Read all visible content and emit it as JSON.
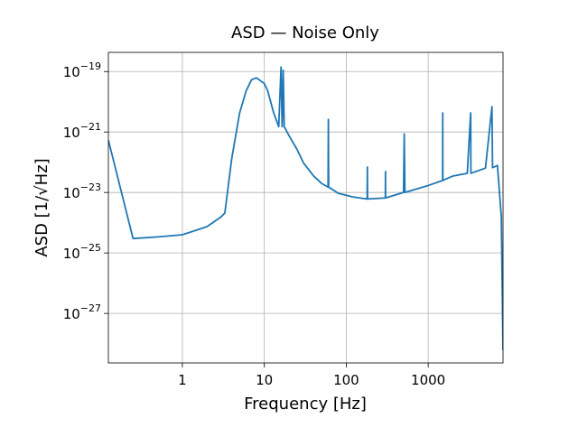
{
  "chart_data": {
    "type": "line",
    "title": "ASD — Noise Only",
    "xlabel": "Frequency [Hz]",
    "ylabel": "ASD [1/√Hz]",
    "xscale": "log",
    "yscale": "log",
    "grid": true,
    "color": "#1f77b4",
    "xlim": [
      0.125,
      8192
    ],
    "ylim": [
      2.3e-29,
      4.3e-19
    ],
    "xticks": [
      1,
      10,
      100,
      1000
    ],
    "yticks": [
      {
        "value": 1e-19,
        "label": "10",
        "exponent": "−19"
      },
      {
        "value": 1e-21,
        "label": "10",
        "exponent": "−21"
      },
      {
        "value": 1e-23,
        "label": "10",
        "exponent": "−23"
      },
      {
        "value": 1e-25,
        "label": "10",
        "exponent": "−25"
      },
      {
        "value": 1e-27,
        "label": "10",
        "exponent": "−27"
      }
    ],
    "x": [
      0.125,
      0.25,
      0.5,
      1,
      2,
      3,
      3.3,
      4,
      5,
      6,
      7,
      8,
      10,
      11,
      13,
      15,
      16,
      16.5,
      17,
      17.5,
      20,
      25,
      30,
      40,
      50,
      60,
      60.5,
      61,
      80,
      120,
      180,
      181,
      182,
      300,
      301,
      302,
      500,
      510,
      520,
      1000,
      1500,
      1505,
      1510,
      2000,
      3000,
      3300,
      3320,
      5000,
      6000,
      6100,
      7000,
      7800,
      8192
    ],
    "values": [
      5.4e-22,
      3e-25,
      3.4e-25,
      4e-25,
      7.4e-25,
      1.6e-24,
      2.1e-24,
      1.3e-22,
      4.3e-21,
      2.3e-20,
      5.4e-20,
      6.2e-20,
      4e-20,
      2.3e-20,
      4.3e-21,
      1.5e-21,
      1.4e-19,
      1.5e-21,
      1.1e-19,
      1.5e-21,
      7.6e-22,
      2.7e-22,
      9.6e-23,
      3.5e-23,
      2e-23,
      1.5e-23,
      2.6e-21,
      1.5e-23,
      9.4e-24,
      7.1e-24,
      6.1e-24,
      6.9e-23,
      6.1e-24,
      6.6e-24,
      4.9e-23,
      6.6e-24,
      1e-23,
      8.6e-22,
      1e-23,
      1.7e-23,
      2.5e-23,
      4.3e-21,
      2.5e-23,
      3.5e-23,
      4.3e-23,
      4.3e-21,
      4.3e-23,
      6.4e-23,
      6.9e-21,
      6.6e-23,
      7.8e-23,
      1.6e-24,
      6e-29
    ]
  }
}
